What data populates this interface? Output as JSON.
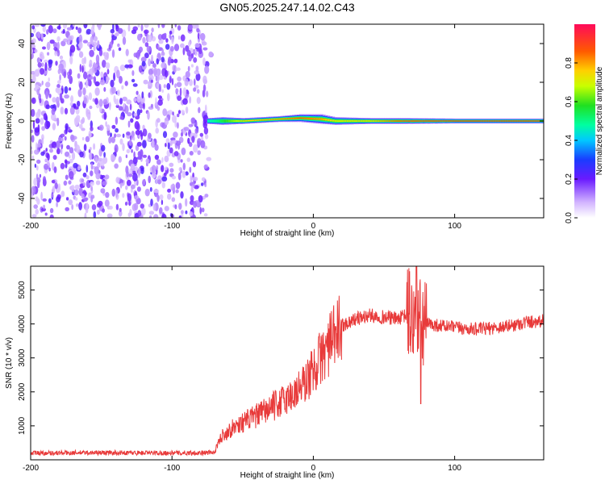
{
  "chart_data": [
    {
      "type": "heatmap",
      "title": "GN05.2025.247.14.02.C43",
      "xlabel": "Height of straight line (km)",
      "ylabel": "Frequency (Hz)",
      "xlim": [
        -200,
        163
      ],
      "ylim": [
        -50,
        50
      ],
      "xticks": [
        -200,
        -100,
        0,
        100
      ],
      "yticks": [
        -40,
        -20,
        0,
        20,
        40
      ],
      "colorbar": {
        "label": "Normalized spectral amplitude",
        "range": [
          0.0,
          1.0
        ],
        "ticks": [
          0.0,
          0.2,
          0.4,
          0.6,
          0.8
        ],
        "tick_labels": [
          "0.0",
          "0.2",
          "0.4",
          "0.6",
          "0.8"
        ]
      },
      "noise_region_x": [
        -200,
        -75
      ],
      "signal_line": [
        {
          "x": -75,
          "freq": 0,
          "width_hz": 3,
          "amp": 0.45
        },
        {
          "x": -65,
          "freq": 0,
          "width_hz": 4,
          "amp": 0.55
        },
        {
          "x": -50,
          "freq": 0,
          "width_hz": 3,
          "amp": 0.75
        },
        {
          "x": -25,
          "freq": 1,
          "width_hz": 3,
          "amp": 0.8
        },
        {
          "x": -10,
          "freq": 1.5,
          "width_hz": 4,
          "amp": 0.85
        },
        {
          "x": 5,
          "freq": 1,
          "width_hz": 5,
          "amp": 0.8
        },
        {
          "x": 15,
          "freq": 0,
          "width_hz": 4,
          "amp": 0.7
        },
        {
          "x": 40,
          "freq": 0,
          "width_hz": 3,
          "amp": 0.75
        },
        {
          "x": 65,
          "freq": 0,
          "width_hz": 3,
          "amp": 0.9
        },
        {
          "x": 100,
          "freq": 0,
          "width_hz": 2.5,
          "amp": 0.95
        },
        {
          "x": 163,
          "freq": 0,
          "width_hz": 2.5,
          "amp": 0.95
        }
      ]
    },
    {
      "type": "line",
      "title": "",
      "xlabel": "Height of straight line (km)",
      "ylabel": "SNR (10 * v/v)",
      "xlim": [
        -200,
        163
      ],
      "ylim": [
        0,
        5700
      ],
      "xticks": [
        -200,
        -100,
        0,
        100
      ],
      "yticks": [
        1000,
        2000,
        3000,
        4000,
        5000
      ],
      "series": [
        {
          "name": "SNR",
          "color": "#e83a3a",
          "x": [
            -200,
            -150,
            -100,
            -70,
            -65,
            -55,
            -40,
            -25,
            -15,
            -5,
            5,
            15,
            20,
            30,
            40,
            50,
            60,
            68,
            72,
            76,
            80,
            90,
            100,
            110,
            120,
            130,
            140,
            150,
            163
          ],
          "values": [
            200,
            210,
            200,
            210,
            700,
            1000,
            1300,
            1650,
            1900,
            2300,
            3000,
            3600,
            3950,
            4150,
            4250,
            4200,
            4150,
            4300,
            4000,
            4050,
            4000,
            3950,
            3900,
            3850,
            3850,
            3900,
            3950,
            4050,
            4100
          ]
        }
      ]
    }
  ]
}
